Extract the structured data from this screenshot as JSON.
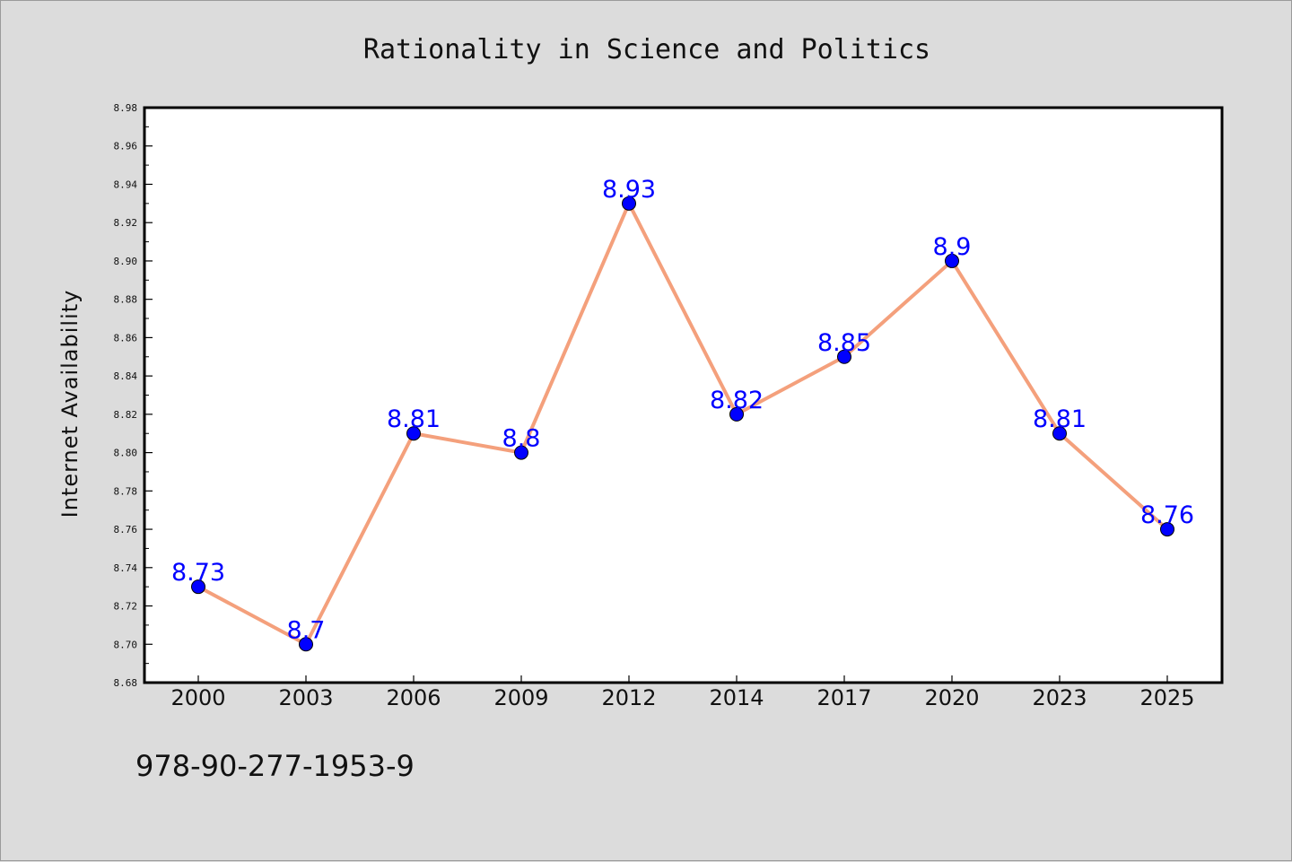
{
  "chart_data": {
    "type": "line",
    "title": "Rationality in Science and Politics",
    "xlabel": "",
    "ylabel": "Internet Availability",
    "categories": [
      "2000",
      "2003",
      "2006",
      "2009",
      "2012",
      "2014",
      "2017",
      "2020",
      "2023",
      "2025"
    ],
    "series": [
      {
        "values": [
          8.73,
          8.7,
          8.81,
          8.8,
          8.93,
          8.82,
          8.85,
          8.9,
          8.81,
          8.76
        ],
        "data_labels": [
          "8.73",
          "8.7",
          "8.81",
          "8.8",
          "8.93",
          "8.82",
          "8.85",
          "8.9",
          "8.81",
          "8.76"
        ]
      }
    ],
    "ylim": [
      8.68,
      8.98
    ],
    "yticks": [
      "8.68",
      "8.70",
      "8.72",
      "8.74",
      "8.76",
      "8.78",
      "8.80",
      "8.82",
      "8.84",
      "8.86",
      "8.88",
      "8.90",
      "8.92",
      "8.94",
      "8.96",
      "8.98"
    ],
    "grid": false,
    "line_color": "#f4a07c",
    "marker_color": "#0000ff",
    "label_color": "#0000ff",
    "background_color": "#dcdcdc",
    "plot_background": "#ffffff"
  },
  "annotation": {
    "isbn": "978-90-277-1953-9"
  }
}
